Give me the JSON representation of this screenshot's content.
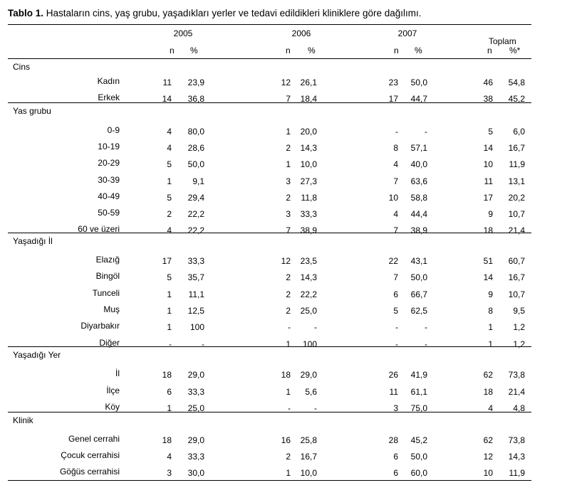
{
  "title": {
    "prefix": "Tablo 1.",
    "text": "Hastaların cins, yaş grubu, yaşadıkları yerler ve tedavi edildikleri kliniklere göre dağılımı."
  },
  "header": {
    "years": [
      "2005",
      "2006",
      "2007"
    ],
    "total": "Toplam",
    "n": "n",
    "pct": "%",
    "pct_total": "%*"
  },
  "sections": [
    {
      "name": "Cins",
      "rows": [
        {
          "label": "Kadın",
          "values": [
            "11",
            "23,9",
            "12",
            "26,1",
            "23",
            "50,0",
            "46",
            "54,8"
          ]
        },
        {
          "label": "Erkek",
          "values": [
            "14",
            "36,8",
            "7",
            "18,4",
            "17",
            "44,7",
            "38",
            "45,2"
          ]
        }
      ]
    },
    {
      "name": "Yas grubu",
      "rows": [
        {
          "label": "0-9",
          "values": [
            "4",
            "80,0",
            "1",
            "20,0",
            "-",
            "-",
            "5",
            "6,0"
          ]
        },
        {
          "label": "10-19",
          "values": [
            "4",
            "28,6",
            "2",
            "14,3",
            "8",
            "57,1",
            "14",
            "16,7"
          ]
        },
        {
          "label": "20-29",
          "values": [
            "5",
            "50,0",
            "1",
            "10,0",
            "4",
            "40,0",
            "10",
            "11,9"
          ]
        },
        {
          "label": "30-39",
          "values": [
            "1",
            "9,1",
            "3",
            "27,3",
            "7",
            "63,6",
            "11",
            "13,1"
          ]
        },
        {
          "label": "40-49",
          "values": [
            "5",
            "29,4",
            "2",
            "11,8",
            "10",
            "58,8",
            "17",
            "20,2"
          ]
        },
        {
          "label": "50-59",
          "values": [
            "2",
            "22,2",
            "3",
            "33,3",
            "4",
            "44,4",
            "9",
            "10,7"
          ]
        },
        {
          "label": "60 ve üzeri",
          "values": [
            "4",
            "22,2",
            "7",
            "38,9",
            "7",
            "38,9",
            "18",
            "21,4"
          ]
        }
      ]
    },
    {
      "name": "Yaşadığı İl",
      "rows": [
        {
          "label": "Elazığ",
          "values": [
            "17",
            "33,3",
            "12",
            "23,5",
            "22",
            "43,1",
            "51",
            "60,7"
          ]
        },
        {
          "label": "Bingöl",
          "values": [
            "5",
            "35,7",
            "2",
            "14,3",
            "7",
            "50,0",
            "14",
            "16,7"
          ]
        },
        {
          "label": "Tunceli",
          "values": [
            "1",
            "11,1",
            "2",
            "22,2",
            "6",
            "66,7",
            "9",
            "10,7"
          ]
        },
        {
          "label": "Muş",
          "values": [
            "1",
            "12,5",
            "2",
            "25,0",
            "5",
            "62,5",
            "8",
            "9,5"
          ]
        },
        {
          "label": "Diyarbakır",
          "values": [
            "1",
            "100",
            "-",
            "-",
            "-",
            "-",
            "1",
            "1,2"
          ]
        },
        {
          "label": "Diğer",
          "values": [
            "-",
            "-",
            "1",
            "100",
            "-",
            "-",
            "1",
            "1,2"
          ]
        }
      ]
    },
    {
      "name": "Yaşadığı Yer",
      "rows": [
        {
          "label": "İl",
          "values": [
            "18",
            "29,0",
            "18",
            "29,0",
            "26",
            "41,9",
            "62",
            "73,8"
          ]
        },
        {
          "label": "İlçe",
          "values": [
            "6",
            "33,3",
            "1",
            "5,6",
            "11",
            "61,1",
            "18",
            "21,4"
          ]
        },
        {
          "label": "Köy",
          "values": [
            "1",
            "25,0",
            "-",
            "-",
            "3",
            "75,0",
            "4",
            "4,8"
          ]
        }
      ]
    },
    {
      "name": "Klinik",
      "rows": [
        {
          "label": "Genel cerrahi",
          "values": [
            "18",
            "29,0",
            "16",
            "25,8",
            "28",
            "45,2",
            "62",
            "73,8"
          ]
        },
        {
          "label": "Çocuk cerrahisi",
          "values": [
            "4",
            "33,3",
            "2",
            "16,7",
            "6",
            "50,0",
            "12",
            "14,3"
          ]
        },
        {
          "label": "Göğüs cerrahisi",
          "values": [
            "3",
            "30,0",
            "1",
            "10,0",
            "6",
            "60,0",
            "10",
            "11,9"
          ]
        }
      ]
    }
  ]
}
